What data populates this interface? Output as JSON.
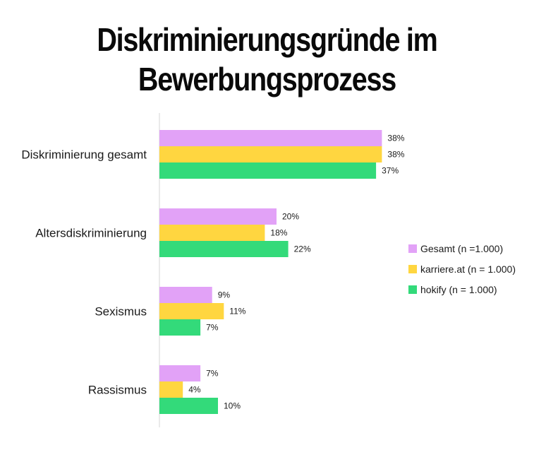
{
  "title_line1": "Diskriminierungsgründe im",
  "title_line2": "Bewerbungsprozess",
  "chart_data": {
    "type": "bar",
    "orientation": "horizontal",
    "title": "Diskriminierungsgründe im Bewerbungsprozess",
    "categories": [
      "Diskriminierung gesamt",
      "Altersdiskriminierung",
      "Sexismus",
      "Rassismus"
    ],
    "series": [
      {
        "name": "Gesamt (n =1.000)",
        "color": "#e2a2f7",
        "values": [
          38,
          20,
          9,
          7
        ]
      },
      {
        "name": "karriere.at (n = 1.000)",
        "color": "#ffd640",
        "values": [
          38,
          18,
          11,
          4
        ]
      },
      {
        "name": "hokify (n = 1.000)",
        "color": "#33da7a",
        "values": [
          37,
          22,
          7,
          10
        ]
      }
    ],
    "value_suffix": "%",
    "xlim": [
      0,
      40
    ],
    "legend_position": "right",
    "grid": false
  }
}
